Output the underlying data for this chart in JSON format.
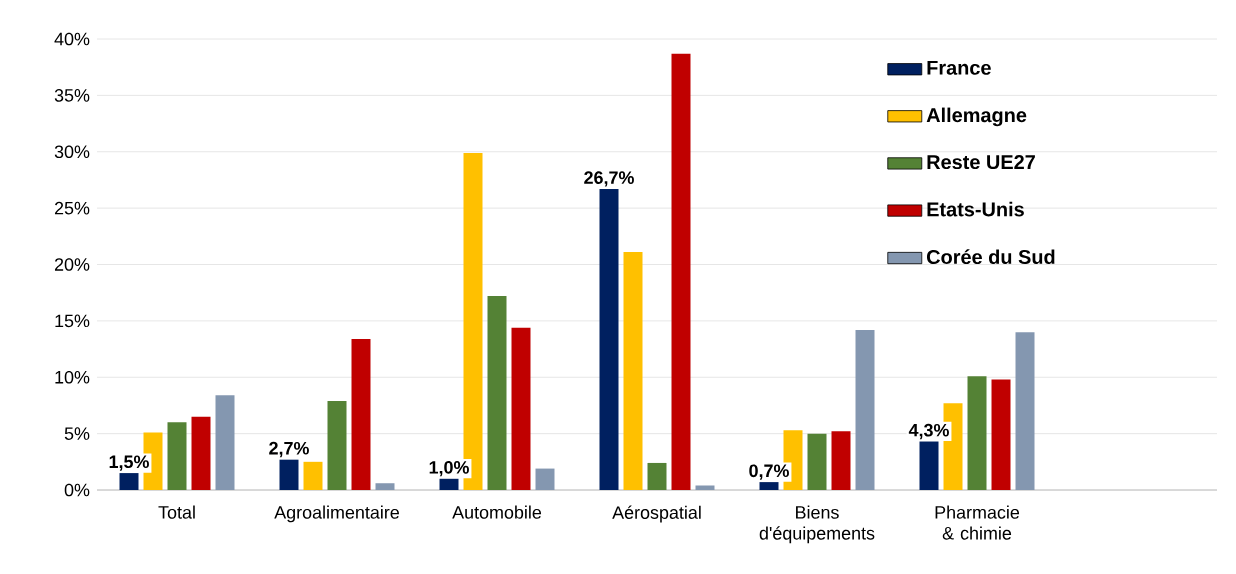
{
  "chart_data": {
    "type": "bar",
    "categories": [
      "Total",
      "Agroalimentaire",
      "Automobile",
      "Aérospatial",
      "Biens d'équipements",
      "Pharmacie & chimie",
      null
    ],
    "series": [
      {
        "name": "France",
        "color": "#002060",
        "values": [
          1.5,
          2.7,
          1.0,
          26.7,
          0.7,
          4.3,
          null
        ],
        "value_labels": [
          "1,5%",
          "2,7%",
          "1,0%",
          "26,7%",
          "0,7%",
          "4,3%",
          null
        ]
      },
      {
        "name": "Allemagne",
        "color": "#ffc000",
        "values": [
          5.1,
          2.5,
          29.9,
          21.1,
          5.3,
          7.7,
          null
        ]
      },
      {
        "name": "Reste UE27",
        "color": "#548235",
        "values": [
          6.0,
          7.9,
          17.2,
          2.4,
          5.0,
          10.1,
          null
        ]
      },
      {
        "name": "Etats-Unis",
        "color": "#c00000",
        "values": [
          6.5,
          13.4,
          14.4,
          38.7,
          5.2,
          9.8,
          null
        ]
      },
      {
        "name": "Corée du Sud",
        "color": "#8497b0",
        "values": [
          8.4,
          0.6,
          1.9,
          0.4,
          14.2,
          14.0,
          null
        ]
      }
    ],
    "ylim": [
      0,
      40
    ],
    "yticks": [
      {
        "value": 0,
        "label": "0%"
      },
      {
        "value": 5,
        "label": "5%"
      },
      {
        "value": 10,
        "label": "10%"
      },
      {
        "value": 15,
        "label": "15%"
      },
      {
        "value": 20,
        "label": "20%"
      },
      {
        "value": 25,
        "label": "25%"
      },
      {
        "value": 30,
        "label": "30%"
      },
      {
        "value": 35,
        "label": "35%"
      },
      {
        "value": 40,
        "label": "40%"
      }
    ],
    "grid": "y",
    "legend": "top right"
  }
}
